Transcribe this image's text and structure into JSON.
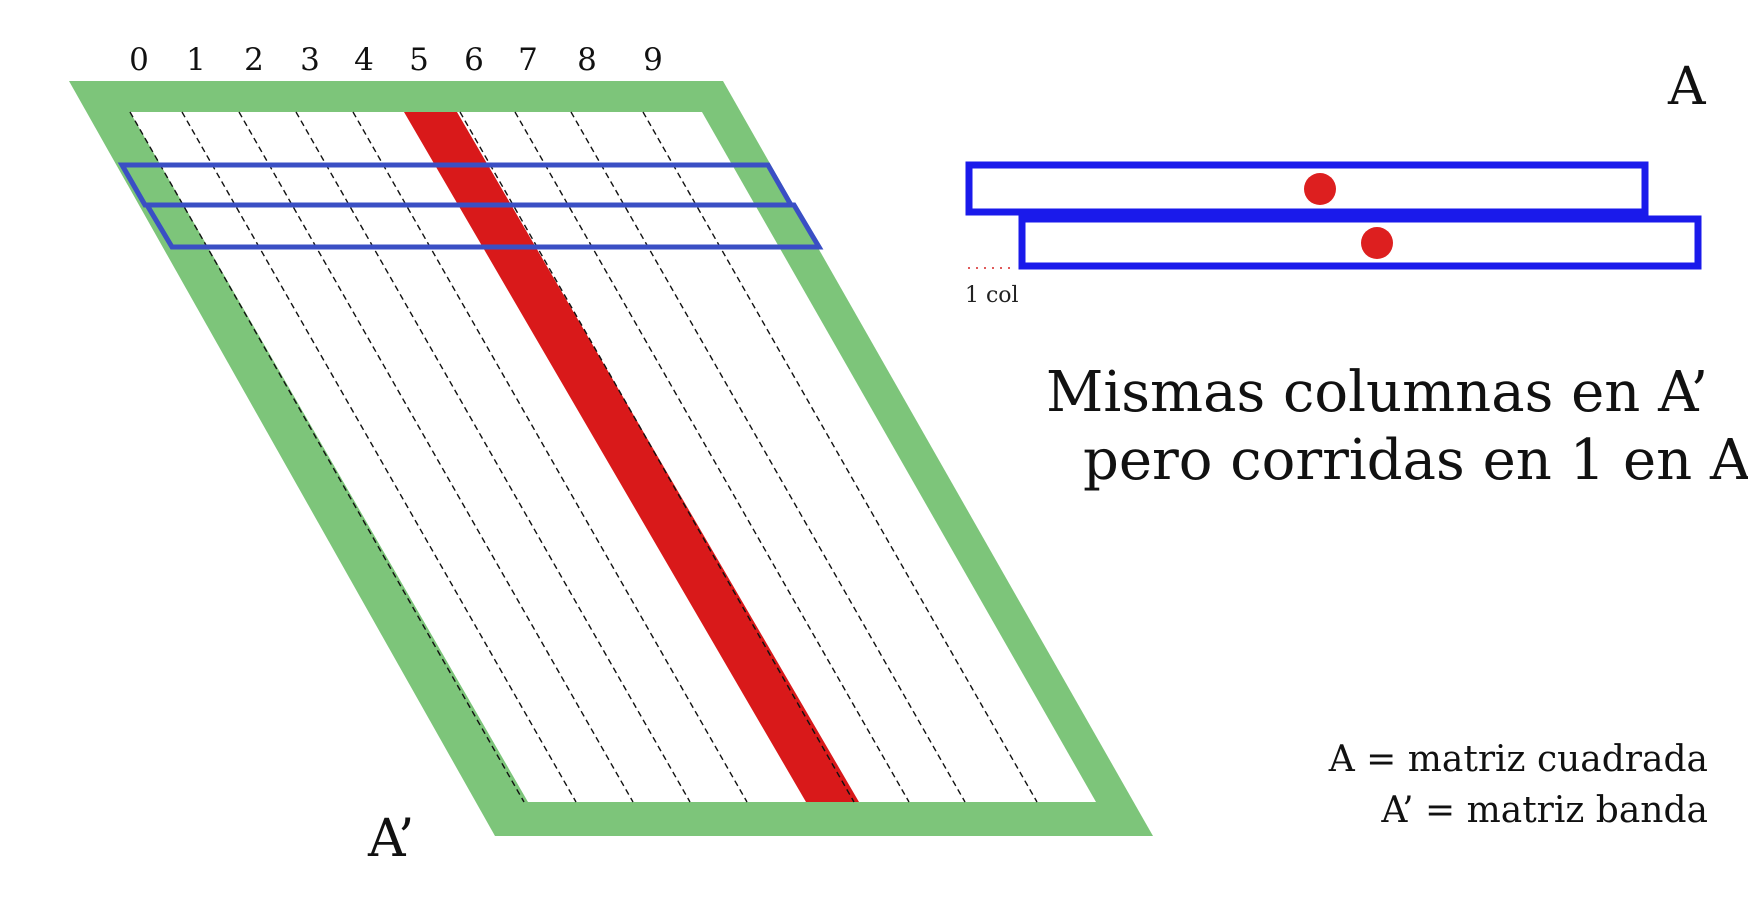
{
  "column_numbers": [
    "0",
    "1",
    "2",
    "3",
    "4",
    "5",
    "6",
    "7",
    "8",
    "9"
  ],
  "highlighted_column": 5,
  "label_a": "A",
  "label_a_prime": "A’",
  "shift_label": "1 col",
  "heading_line1": "Mismas columnas en A’",
  "heading_line2": "pero corridas en 1 en A",
  "legend_line1": "A = matriz cuadrada",
  "legend_line2": "A’ = matriz banda",
  "colors": {
    "band_border": "#7dc57a",
    "highlight_column": "#d9191a",
    "row_outline": "#3a4fc4",
    "a_row_outline": "#1a1aeb",
    "dot": "#dd1f1f",
    "dashed_line": "#111111"
  }
}
